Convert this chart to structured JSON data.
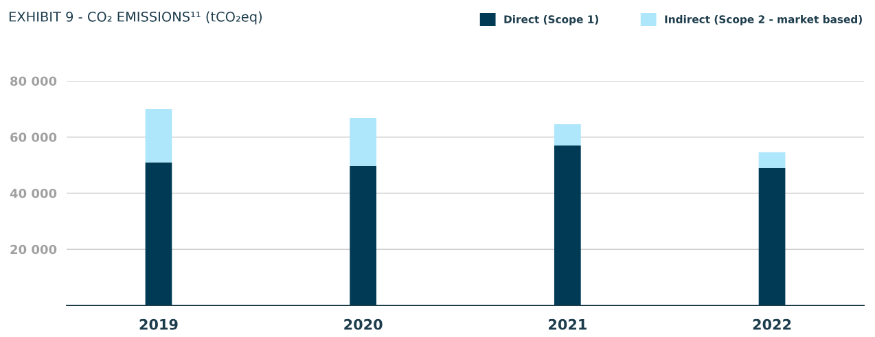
{
  "chart_data": {
    "type": "bar",
    "title": "EXHIBIT 9 - CO₂ EMISSIONS¹¹ (tCO₂eq)",
    "stacked": true,
    "categories": [
      "2019",
      "2020",
      "2021",
      "2022"
    ],
    "series": [
      {
        "name": "Direct (Scope 1)",
        "color": "#003a55",
        "values": [
          51000,
          49700,
          57000,
          49000
        ]
      },
      {
        "name": "Indirect (Scope 2 - market based)",
        "color": "#aee6fb",
        "values": [
          19000,
          17100,
          7600,
          5600
        ]
      }
    ],
    "ylim": [
      0,
      80000
    ],
    "yticks": [
      {
        "value": 20000,
        "label": "20 000"
      },
      {
        "value": 40000,
        "label": "40 000"
      },
      {
        "value": 60000,
        "label": "60 000"
      },
      {
        "value": 80000,
        "label": "80 000"
      }
    ],
    "grid": "y",
    "legend": "top right"
  }
}
